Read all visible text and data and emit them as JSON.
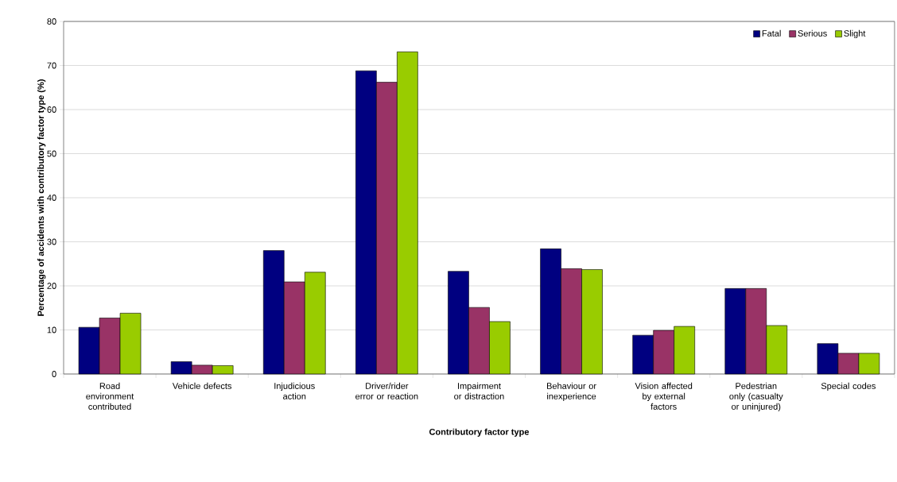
{
  "chart_data": {
    "type": "bar",
    "xlabel": "Contributory factor type",
    "ylabel": "Percentage of accidents with contributory factor type (%)",
    "categories": [
      "Road environment contributed",
      "Vehicle defects",
      "Injudicious action",
      "Driver/rider error or reaction",
      "Impairment or distraction",
      "Behaviour or inexperience",
      "Vision affected by external factors",
      "Pedestrian only (casualty or uninjured)",
      "Special codes"
    ],
    "series": [
      {
        "name": "Fatal",
        "color": "#000080",
        "values": [
          10.6,
          2.8,
          28.0,
          68.8,
          23.3,
          28.4,
          8.8,
          19.4,
          6.9
        ]
      },
      {
        "name": "Serious",
        "color": "#993366",
        "values": [
          12.7,
          2.0,
          20.9,
          66.2,
          15.1,
          23.9,
          9.9,
          19.4,
          4.7
        ]
      },
      {
        "name": "Slight",
        "color": "#99cc00",
        "values": [
          13.8,
          1.9,
          23.1,
          73.1,
          11.9,
          23.7,
          10.8,
          11.0,
          4.7
        ]
      }
    ],
    "ylim": [
      0,
      80
    ],
    "yticks": [
      0,
      10,
      20,
      30,
      40,
      50,
      60,
      70,
      80
    ],
    "grid": "y",
    "legend": "top right"
  }
}
